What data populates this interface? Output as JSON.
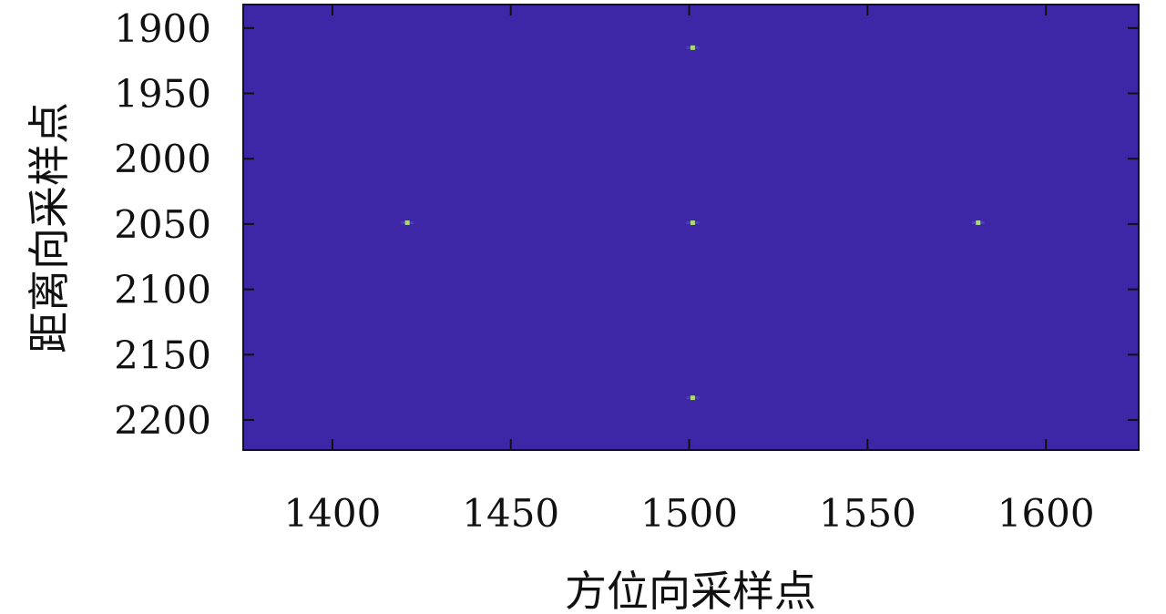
{
  "chart_data": {
    "type": "heatmap",
    "xlabel": "方位向采样点",
    "ylabel": "距离向采样点",
    "xlim": [
      1375,
      1626
    ],
    "ylim": [
      1882,
      2223
    ],
    "y_reversed": true,
    "xticks": [
      1400,
      1450,
      1500,
      1550,
      1600
    ],
    "yticks": [
      1900,
      1950,
      2000,
      2050,
      2100,
      2150,
      2200
    ],
    "background_color": "#3d27a6",
    "point_color": "#a8d878",
    "points": [
      {
        "x": 1501,
        "y": 1915
      },
      {
        "x": 1421,
        "y": 2049
      },
      {
        "x": 1501,
        "y": 2049
      },
      {
        "x": 1581,
        "y": 2049
      },
      {
        "x": 1501,
        "y": 2183
      }
    ],
    "grid": false
  }
}
